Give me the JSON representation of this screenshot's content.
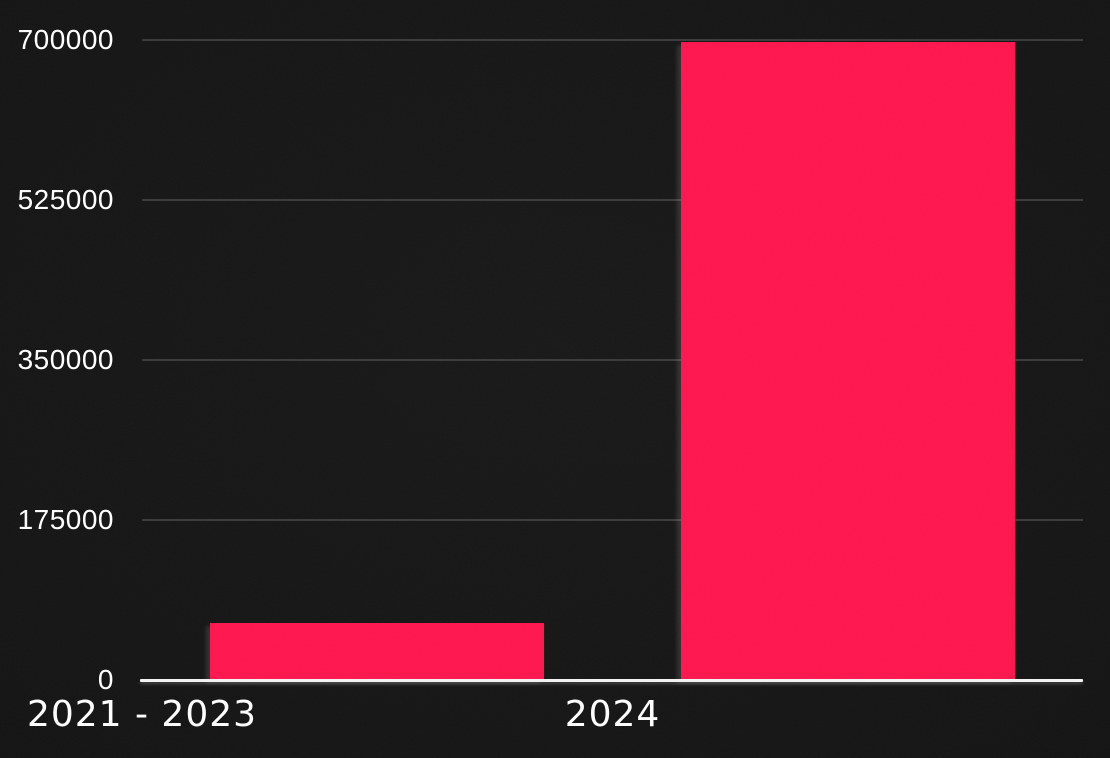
{
  "chart_data": {
    "type": "bar",
    "categories": [
      "2021 - 2023",
      "2024"
    ],
    "values": [
      62000,
      697000
    ],
    "title": "",
    "xlabel": "",
    "ylabel": "",
    "ylim": [
      0,
      700000
    ],
    "yticks": [
      0,
      175000,
      350000,
      525000,
      700000
    ],
    "grid": true,
    "legend": false,
    "colors": {
      "bar": "#FD164D",
      "background": "#141414",
      "gridline": "#3a3a3a",
      "axis_line": "#f2f2f2",
      "tick_text": "#ffffff",
      "category_text": "#ffffff"
    }
  }
}
